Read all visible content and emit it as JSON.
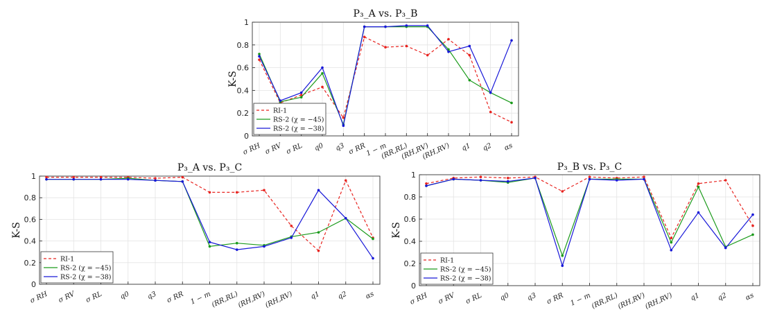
{
  "colors": {
    "RI-1": "#e8231f",
    "RS-2a": "#1a9a1a",
    "RS-2b": "#1717d8"
  },
  "chart_data": [
    {
      "type": "line",
      "title": "P₃_A vs. P₃_B",
      "ylabel": "K-S",
      "ylim": [
        0,
        1
      ],
      "yticks": [
        "0",
        "0.2",
        "0.4",
        "0.6",
        "0.8",
        "1"
      ],
      "legend_placement": "bottom-left",
      "categories": [
        "σ RH",
        "σ RV",
        "σ RL",
        "q0",
        "q3",
        "σ RR",
        "1 − m",
        "(RR,RL)",
        "(RH,RV)",
        "(RH,RV)",
        "q1",
        "q2",
        "αs"
      ],
      "series": [
        {
          "name": "RI-1",
          "color_key": "RI-1",
          "dashed": true,
          "values": [
            0.67,
            0.29,
            0.36,
            0.43,
            0.16,
            0.87,
            0.78,
            0.79,
            0.71,
            0.85,
            0.71,
            0.21,
            0.12
          ]
        },
        {
          "name": "RS-2 (χ = −45)",
          "color_key": "RS-2a",
          "dashed": false,
          "values": [
            0.72,
            0.3,
            0.34,
            0.55,
            0.1,
            0.96,
            0.96,
            0.96,
            0.96,
            0.76,
            0.49,
            0.38,
            0.29
          ]
        },
        {
          "name": "RS-2 (χ = −38)",
          "color_key": "RS-2b",
          "dashed": false,
          "values": [
            0.7,
            0.31,
            0.38,
            0.6,
            0.09,
            0.96,
            0.96,
            0.97,
            0.97,
            0.74,
            0.79,
            0.38,
            0.84
          ]
        }
      ]
    },
    {
      "type": "line",
      "title": "P₃_A vs. P₃_C",
      "ylabel": "K-S",
      "ylim": [
        0,
        1
      ],
      "yticks": [
        "0",
        "0.2",
        "0.4",
        "0.6",
        "0.8",
        "1"
      ],
      "legend_placement": "bottom-left",
      "categories": [
        "σ RH",
        "σ RV",
        "σ RL",
        "q0",
        "q3",
        "σ RR",
        "1 − m",
        "(RR,RL)",
        "(RH,RV)",
        "(RH,RV)",
        "q1",
        "q2",
        "αs"
      ],
      "series": [
        {
          "name": "RI-1",
          "color_key": "RI-1",
          "dashed": true,
          "values": [
            0.99,
            0.99,
            0.99,
            0.99,
            0.98,
            0.99,
            0.85,
            0.85,
            0.87,
            0.54,
            0.31,
            0.96,
            0.43
          ]
        },
        {
          "name": "RS-2 (χ = −45)",
          "color_key": "RS-2a",
          "dashed": false,
          "values": [
            0.97,
            0.97,
            0.97,
            0.98,
            0.96,
            0.95,
            0.35,
            0.38,
            0.36,
            0.44,
            0.48,
            0.61,
            0.42
          ]
        },
        {
          "name": "RS-2 (χ = −38)",
          "color_key": "RS-2b",
          "dashed": false,
          "values": [
            0.97,
            0.97,
            0.97,
            0.97,
            0.96,
            0.95,
            0.39,
            0.32,
            0.35,
            0.43,
            0.87,
            0.61,
            0.24
          ]
        }
      ]
    },
    {
      "type": "line",
      "title": "P₃_B vs. P₃_C",
      "ylabel": "K-S",
      "ylim": [
        0,
        1
      ],
      "yticks": [
        "0",
        "0.2",
        "0.4",
        "0.6",
        "0.8",
        "1"
      ],
      "legend_placement": "bottom-left",
      "categories": [
        "σ RH",
        "σ RV",
        "σ RL",
        "q0",
        "q3",
        "σ RR",
        "1 − m",
        "(RR,RL)",
        "(RH,RV)",
        "(RH,RV)",
        "q1",
        "q2",
        "αs"
      ],
      "series": [
        {
          "name": "RI-1",
          "color_key": "RI-1",
          "dashed": true,
          "values": [
            0.92,
            0.97,
            0.98,
            0.97,
            0.98,
            0.85,
            0.98,
            0.97,
            0.98,
            0.43,
            0.92,
            0.95,
            0.54
          ]
        },
        {
          "name": "RS-2 (χ = −45)",
          "color_key": "RS-2a",
          "dashed": false,
          "values": [
            0.9,
            0.96,
            0.95,
            0.93,
            0.97,
            0.27,
            0.96,
            0.96,
            0.96,
            0.39,
            0.89,
            0.35,
            0.46
          ]
        },
        {
          "name": "RS-2 (χ = −38)",
          "color_key": "RS-2b",
          "dashed": false,
          "values": [
            0.9,
            0.96,
            0.95,
            0.94,
            0.97,
            0.18,
            0.96,
            0.95,
            0.96,
            0.32,
            0.66,
            0.34,
            0.64
          ]
        }
      ]
    }
  ]
}
